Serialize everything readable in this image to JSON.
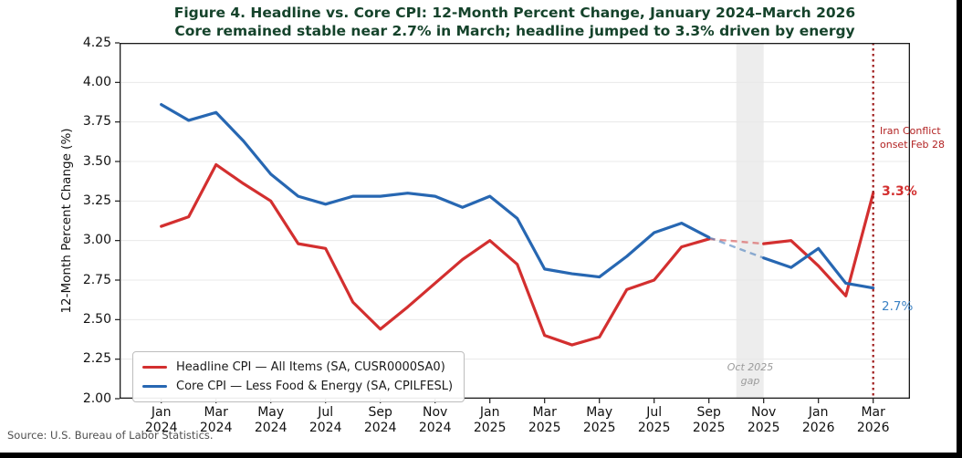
{
  "title": {
    "line1": "Figure 4. Headline vs. Core CPI: 12-Month Percent Change, January 2024–March 2026",
    "line2": "Core remained stable near 2.7% in March; headline jumped to 3.3% driven by energy",
    "color": "#15432b"
  },
  "source": "Source: U.S. Bureau of Labor Statistics.",
  "axes": {
    "y_label": "12-Month Percent Change (%)",
    "y_ticks": [
      4.25,
      4.0,
      3.75,
      3.5,
      3.25,
      3.0,
      2.75,
      2.5,
      2.25,
      2.0
    ],
    "x_ticks": [
      {
        "line1": "Jan",
        "line2": "2024"
      },
      {
        "line1": "Mar",
        "line2": "2024"
      },
      {
        "line1": "May",
        "line2": "2024"
      },
      {
        "line1": "Jul",
        "line2": "2024"
      },
      {
        "line1": "Sep",
        "line2": "2024"
      },
      {
        "line1": "Nov",
        "line2": "2024"
      },
      {
        "line1": "Jan",
        "line2": "2025"
      },
      {
        "line1": "Mar",
        "line2": "2025"
      },
      {
        "line1": "May",
        "line2": "2025"
      },
      {
        "line1": "Jul",
        "line2": "2025"
      },
      {
        "line1": "Sep",
        "line2": "2025"
      },
      {
        "line1": "Nov",
        "line2": "2025"
      },
      {
        "line1": "Jan",
        "line2": "2026"
      },
      {
        "line1": "Mar",
        "line2": "2026"
      }
    ]
  },
  "legend": {
    "items": [
      {
        "label": "Headline CPI — All Items (SA, CUSR0000SA0)",
        "color": "#d32f2f"
      },
      {
        "label": "Core CPI — Less Food & Energy (SA, CPILFESL)",
        "color": "#2767b2"
      }
    ]
  },
  "annotations": {
    "event_label_line1": "Iran Conflict",
    "event_label_line2": "onset Feb 28",
    "event_text_color": "#b22222",
    "headline_value_label": "3.3%",
    "core_value_label": "2.7%",
    "gap_label_line1": "Oct 2025",
    "gap_label_line2": "gap"
  },
  "chart_data": {
    "type": "line",
    "title": "Figure 4. Headline vs. Core CPI: 12-Month Percent Change, January 2024–March 2026",
    "subtitle": "Core remained stable near 2.7% in March; headline jumped to 3.3% driven by energy",
    "xlabel": "",
    "ylabel": "12-Month Percent Change (%)",
    "ylim": [
      2.0,
      4.25
    ],
    "y_gridlines": [
      2.25,
      2.5,
      2.75,
      3.0,
      3.25,
      3.5,
      3.75,
      4.0
    ],
    "grid": "horizontal",
    "legend_position": "lower left",
    "x": [
      "Jan 2024",
      "Feb 2024",
      "Mar 2024",
      "Apr 2024",
      "May 2024",
      "Jun 2024",
      "Jul 2024",
      "Aug 2024",
      "Sep 2024",
      "Oct 2024",
      "Nov 2024",
      "Dec 2024",
      "Jan 2025",
      "Feb 2025",
      "Mar 2025",
      "Apr 2025",
      "May 2025",
      "Jun 2025",
      "Jul 2025",
      "Aug 2025",
      "Sep 2025",
      "Oct 2025",
      "Nov 2025",
      "Dec 2025",
      "Jan 2026",
      "Feb 2026",
      "Mar 2026"
    ],
    "series": [
      {
        "id": "headline",
        "name": "Headline CPI — All Items (SA, CUSR0000SA0)",
        "color": "#d32f2f",
        "values": [
          3.09,
          3.15,
          3.48,
          3.36,
          3.25,
          2.98,
          2.95,
          2.61,
          2.44,
          2.58,
          2.73,
          2.88,
          3.0,
          2.85,
          2.4,
          2.34,
          2.39,
          2.69,
          2.75,
          2.96,
          3.01,
          null,
          2.98,
          3.0,
          2.84,
          2.65,
          3.3
        ]
      },
      {
        "id": "core",
        "name": "Core CPI — Less Food & Energy (SA, CPILFESL)",
        "color": "#2767b2",
        "values": [
          3.86,
          3.76,
          3.81,
          3.63,
          3.42,
          3.28,
          3.23,
          3.28,
          3.28,
          3.3,
          3.28,
          3.21,
          3.28,
          3.14,
          2.82,
          2.79,
          2.77,
          2.9,
          3.05,
          3.11,
          3.02,
          null,
          2.89,
          2.83,
          2.95,
          2.73,
          2.7
        ]
      }
    ],
    "annotations": {
      "event_index": 26,
      "event_line_color": "#9e1a1a",
      "gap_band": {
        "from_index": 21,
        "to_index": 22,
        "color": "#dedede"
      }
    }
  }
}
